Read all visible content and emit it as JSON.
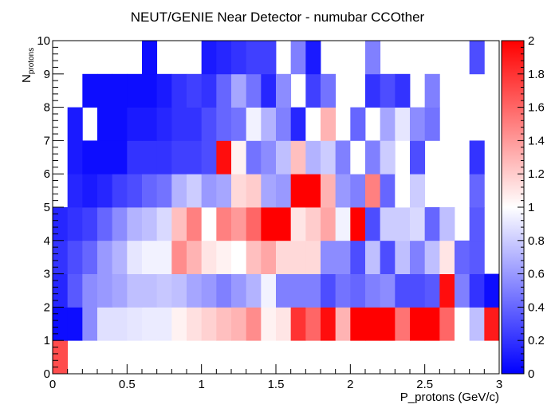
{
  "chart_data": {
    "type": "heatmap",
    "title": "NEUT/GENIE Near Detector - numubar CCOther",
    "xlabel": "P_protons (GeV/c)",
    "ylabel_main": "N",
    "ylabel_sub": "protons",
    "xlim": [
      0,
      3
    ],
    "ylim": [
      0,
      10
    ],
    "x_bins": 30,
    "y_bins": 10,
    "x_ticks": [
      "0",
      "0.5",
      "1",
      "1.5",
      "2",
      "2.5",
      "3"
    ],
    "y_ticks": [
      "0",
      "1",
      "2",
      "3",
      "4",
      "5",
      "6",
      "7",
      "8",
      "9",
      "10"
    ],
    "colorbar": {
      "range": [
        0,
        2
      ],
      "ticks": [
        "0",
        "0.2",
        "0.4",
        "0.6",
        "0.8",
        "1",
        "1.2",
        "1.4",
        "1.6",
        "1.8",
        "2"
      ],
      "low_color": "#0000ff",
      "mid_color": "#ffffff",
      "high_color": "#ff0000"
    },
    "values": [
      [
        1.7,
        null,
        null,
        null,
        null,
        null,
        null,
        null,
        null,
        null,
        null,
        null,
        null,
        null,
        null,
        null,
        null,
        null,
        null,
        null,
        null,
        null,
        null,
        null,
        null,
        null,
        null,
        null,
        null,
        null
      ],
      [
        0.05,
        0.05,
        0.55,
        0.88,
        0.88,
        0.9,
        0.92,
        0.92,
        1.05,
        1.12,
        1.18,
        1.25,
        1.3,
        1.45,
        1.05,
        1.1,
        1.8,
        1.6,
        1.95,
        1.3,
        2.0,
        2.0,
        2.0,
        1.55,
        2.0,
        2.0,
        1.6,
        1.0,
        0.75,
        1.9
      ],
      [
        0.15,
        0.35,
        0.55,
        0.6,
        0.65,
        0.75,
        0.75,
        0.78,
        0.75,
        0.65,
        0.6,
        0.5,
        0.6,
        0.7,
        0.95,
        0.5,
        0.5,
        0.5,
        0.3,
        0.45,
        0.4,
        0.5,
        0.55,
        0.3,
        0.3,
        0.35,
        1.95,
        0.5,
        0.2,
        0.05
      ],
      [
        0.2,
        0.3,
        0.4,
        0.6,
        0.7,
        0.9,
        0.95,
        0.95,
        1.45,
        1.3,
        1.1,
        1.05,
        1.0,
        1.25,
        1.35,
        1.15,
        1.15,
        1.15,
        0.55,
        0.55,
        0.3,
        0.75,
        0.3,
        0.75,
        0.5,
        0.75,
        1.1,
        0.4,
        0.35,
        null
      ],
      [
        0.15,
        0.2,
        0.25,
        0.4,
        0.55,
        0.7,
        0.75,
        0.85,
        1.25,
        1.5,
        1.0,
        1.5,
        1.4,
        1.6,
        2.0,
        2.0,
        1.1,
        1.2,
        1.35,
        0.95,
        2.0,
        0.3,
        0.8,
        0.8,
        0.85,
        0.4,
        0.75,
        null,
        0.35,
        null
      ],
      [
        null,
        0.15,
        0.1,
        0.15,
        0.25,
        0.3,
        0.4,
        0.45,
        0.7,
        0.8,
        0.6,
        0.65,
        1.15,
        1.2,
        0.65,
        0.6,
        2.0,
        2.0,
        1.3,
        0.6,
        0.5,
        1.5,
        0.4,
        1.0,
        0.8,
        null,
        null,
        null,
        0.4,
        null
      ],
      [
        null,
        0.1,
        0.05,
        0.05,
        0.05,
        0.2,
        0.2,
        0.2,
        0.25,
        0.25,
        0.3,
        1.95,
        1.05,
        0.45,
        0.55,
        0.75,
        1.25,
        0.7,
        0.8,
        0.5,
        1.0,
        0.5,
        0.8,
        null,
        0.3,
        null,
        null,
        null,
        0.2,
        null
      ],
      [
        null,
        0.1,
        null,
        0.05,
        0.05,
        0.1,
        0.1,
        0.15,
        0.2,
        0.2,
        0.3,
        0.4,
        0.45,
        0.95,
        0.7,
        0.5,
        0.15,
        1.0,
        1.3,
        null,
        0.4,
        null,
        0.65,
        0.9,
        0.55,
        0.45,
        null,
        null,
        null,
        null
      ],
      [
        null,
        null,
        0.05,
        0.05,
        0.05,
        0.05,
        0.05,
        0.1,
        0.2,
        0.25,
        0.2,
        0.4,
        0.65,
        0.45,
        0.15,
        0.55,
        null,
        0.25,
        0.45,
        null,
        null,
        0.2,
        0.3,
        0.2,
        null,
        0.5,
        null,
        null,
        null,
        null
      ],
      [
        null,
        null,
        null,
        null,
        null,
        null,
        0.05,
        null,
        null,
        null,
        0.1,
        0.15,
        0.2,
        0.25,
        0.25,
        null,
        0.5,
        0.1,
        null,
        null,
        null,
        0.5,
        null,
        null,
        null,
        null,
        null,
        null,
        0.3,
        null
      ]
    ]
  }
}
